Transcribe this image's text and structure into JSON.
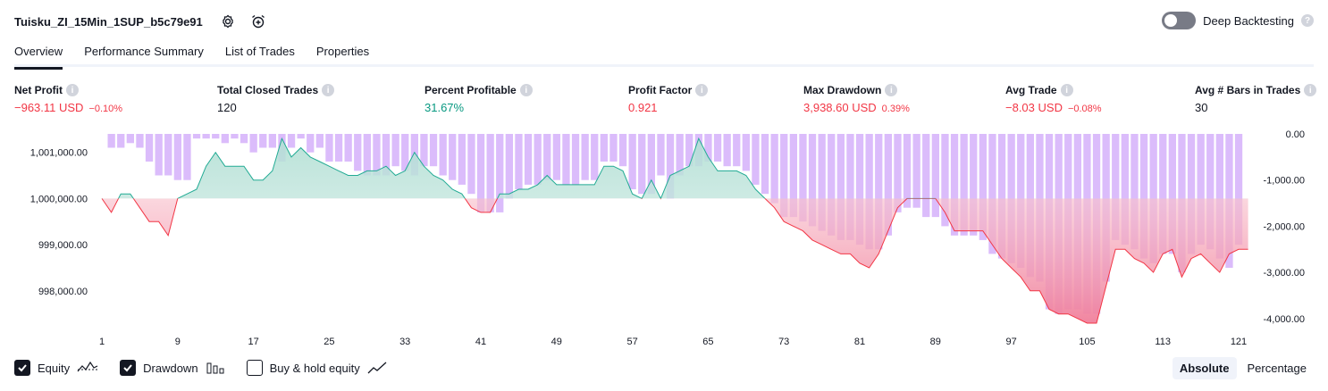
{
  "strategy": {
    "name": "Tuisku_ZI_15Min_1SUP_b5c79e91",
    "settings_icon": "gear-icon",
    "alert_icon": "alarm-plus-icon"
  },
  "deep_backtesting": {
    "label": "Deep Backtesting",
    "enabled": false,
    "help": "?"
  },
  "tabs": [
    {
      "label": "Overview",
      "active": true
    },
    {
      "label": "Performance Summary",
      "active": false
    },
    {
      "label": "List of Trades",
      "active": false
    },
    {
      "label": "Properties",
      "active": false
    }
  ],
  "metrics": [
    {
      "label": "Net Profit",
      "value": "−963.11 USD",
      "sub": "−0.10%",
      "color": "#f23645"
    },
    {
      "label": "Total Closed Trades",
      "value": "120",
      "sub": "",
      "color": "#131722"
    },
    {
      "label": "Percent Profitable",
      "value": "31.67%",
      "sub": "",
      "color": "#089981"
    },
    {
      "label": "Profit Factor",
      "value": "0.921",
      "sub": "",
      "color": "#f23645"
    },
    {
      "label": "Max Drawdown",
      "value": "3,938.60 USD",
      "sub": "0.39%",
      "color": "#f23645"
    },
    {
      "label": "Avg Trade",
      "value": "−8.03 USD",
      "sub": "−0.08%",
      "color": "#f23645"
    },
    {
      "label": "Avg # Bars in Trades",
      "value": "30",
      "sub": "",
      "color": "#131722"
    }
  ],
  "legend": {
    "equity": {
      "label": "Equity",
      "checked": true,
      "icon": "equity-line-icon"
    },
    "drawdown": {
      "label": "Drawdown",
      "checked": true,
      "icon": "drawdown-bars-icon"
    },
    "buy_hold": {
      "label": "Buy & hold equity",
      "checked": false,
      "icon": "buy-hold-line-icon"
    }
  },
  "mode": {
    "absolute": "Absolute",
    "percentage": "Percentage",
    "active": "Absolute"
  },
  "chart_data": {
    "type": "line",
    "x_ticks": [
      "1",
      "9",
      "17",
      "25",
      "33",
      "41",
      "49",
      "57",
      "65",
      "73",
      "81",
      "89",
      "97",
      "105",
      "113",
      "121"
    ],
    "x_range": [
      1,
      121
    ],
    "left_axis": {
      "ticks": [
        "1,001,000.00",
        "1,000,000.00",
        "999,000.00",
        "998,000.00"
      ],
      "tick_values": [
        1001000,
        1000000,
        999000,
        998000
      ],
      "range": [
        997300,
        1001400
      ]
    },
    "right_axis": {
      "ticks": [
        "0.00",
        "-1,000.00",
        "-2,000.00",
        "-3,000.00",
        "-4,000.00"
      ],
      "tick_values": [
        0,
        -1000,
        -2000,
        -3000,
        -4000
      ],
      "range": [
        -4100,
        0
      ]
    },
    "baseline": 1000000,
    "series": [
      {
        "kind": "equity",
        "values": [
          1000000,
          999700,
          1000100,
          1000100,
          999800,
          999500,
          999500,
          999200,
          1000000,
          1000100,
          1000200,
          1000700,
          1001000,
          1000700,
          1000700,
          1000700,
          1000400,
          1000400,
          1000600,
          1001300,
          1000900,
          1001100,
          1000900,
          1000800,
          1000700,
          1000600,
          1000500,
          1000500,
          1000600,
          1000600,
          1000700,
          1000500,
          1000600,
          1001000,
          1000700,
          1000500,
          1000400,
          1000200,
          1000100,
          999800,
          999700,
          999700,
          1000100,
          1000100,
          1000200,
          1000200,
          1000300,
          1000500,
          1000300,
          1000300,
          1000300,
          1000300,
          1000300,
          1000700,
          1000700,
          1000600,
          1000100,
          1000000,
          1000400,
          1000000,
          1000500,
          1000600,
          1000700,
          1001300,
          1000900,
          1000600,
          1000600,
          1000600,
          1000500,
          1000200,
          1000000,
          999800,
          999500,
          999400,
          999300,
          999100,
          999000,
          998900,
          998800,
          998800,
          998600,
          998500,
          998800,
          999300,
          999800,
          1000000,
          1000000,
          1000000,
          1000000,
          999700,
          999300,
          999300,
          999300,
          999300,
          999000,
          998700,
          998500,
          998300,
          998000,
          998000,
          997600,
          997500,
          997500,
          997400,
          997300,
          997300,
          998100,
          998900,
          998900,
          998700,
          998600,
          998400,
          998800,
          998900,
          998300,
          998700,
          998800,
          998600,
          998400,
          998800,
          998900,
          998900
        ]
      },
      {
        "kind": "drawdown",
        "values": [
          0,
          -300,
          -300,
          -200,
          -300,
          -600,
          -900,
          -900,
          -1000,
          -1000,
          -100,
          -100,
          -100,
          -200,
          -100,
          -200,
          -400,
          -300,
          -300,
          -600,
          -300,
          -100,
          -400,
          -300,
          -600,
          -600,
          -600,
          -800,
          -900,
          -900,
          -900,
          -700,
          -800,
          -900,
          -700,
          -700,
          -900,
          -1000,
          -1100,
          -1300,
          -1700,
          -1700,
          -1700,
          -1400,
          -1200,
          -1100,
          -1100,
          -1000,
          -1000,
          -1100,
          -1100,
          -1000,
          -1000,
          -600,
          -600,
          -700,
          -1200,
          -1300,
          -1300,
          -900,
          -1400,
          -900,
          -700,
          -700,
          -600,
          -600,
          -700,
          -700,
          -800,
          -1100,
          -1300,
          -1500,
          -1800,
          -1800,
          -1900,
          -2000,
          -2100,
          -2200,
          -2300,
          -2300,
          -2400,
          -2500,
          -2500,
          -2200,
          -1700,
          -1600,
          -1600,
          -1800,
          -1800,
          -2000,
          -2200,
          -2200,
          -2200,
          -2300,
          -2600,
          -2700,
          -2800,
          -2900,
          -3100,
          -3200,
          -3800,
          -3900,
          -3800,
          -3800,
          -3900,
          -3900,
          -3200,
          -2300,
          -2400,
          -2500,
          -2700,
          -2800,
          -2600,
          -2600,
          -3000,
          -2600,
          -2400,
          -2500,
          -2700,
          -2900,
          -2400
        ]
      }
    ]
  }
}
